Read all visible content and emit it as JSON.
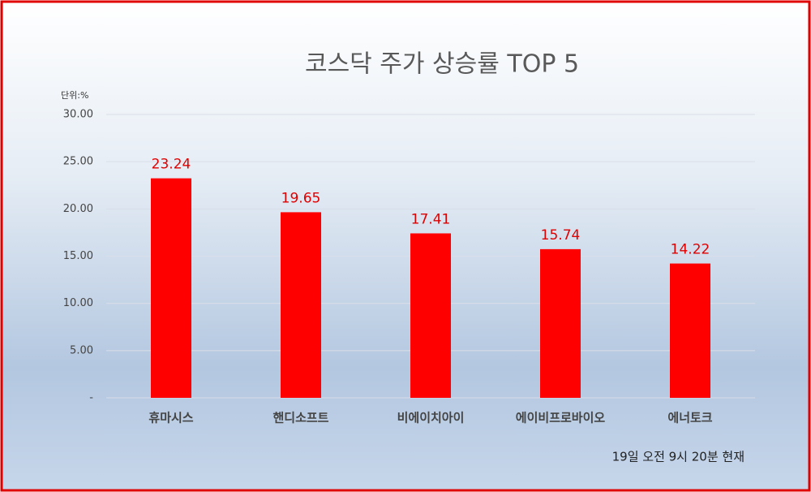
{
  "chart_data": {
    "type": "bar",
    "title": "코스닥 주가 상승률 TOP 5",
    "unit_label": "단위:%",
    "note": "19일  오전 9시  20분 현재",
    "categories": [
      "휴마시스",
      "핸디소프트",
      "비에이치아이",
      "에이비프로바이오",
      "에너토크"
    ],
    "values": [
      23.24,
      19.65,
      17.41,
      15.74,
      14.22
    ],
    "color": "#ff0000",
    "ylim": [
      0,
      30
    ],
    "yticks": [
      {
        "value": 0,
        "label": "-"
      },
      {
        "value": 5,
        "label": "5.00"
      },
      {
        "value": 10,
        "label": "10.00"
      },
      {
        "value": 15,
        "label": "15.00"
      },
      {
        "value": 20,
        "label": "20.00"
      },
      {
        "value": 25,
        "label": "25.00"
      },
      {
        "value": 30,
        "label": "30.00"
      }
    ],
    "grid": true
  }
}
